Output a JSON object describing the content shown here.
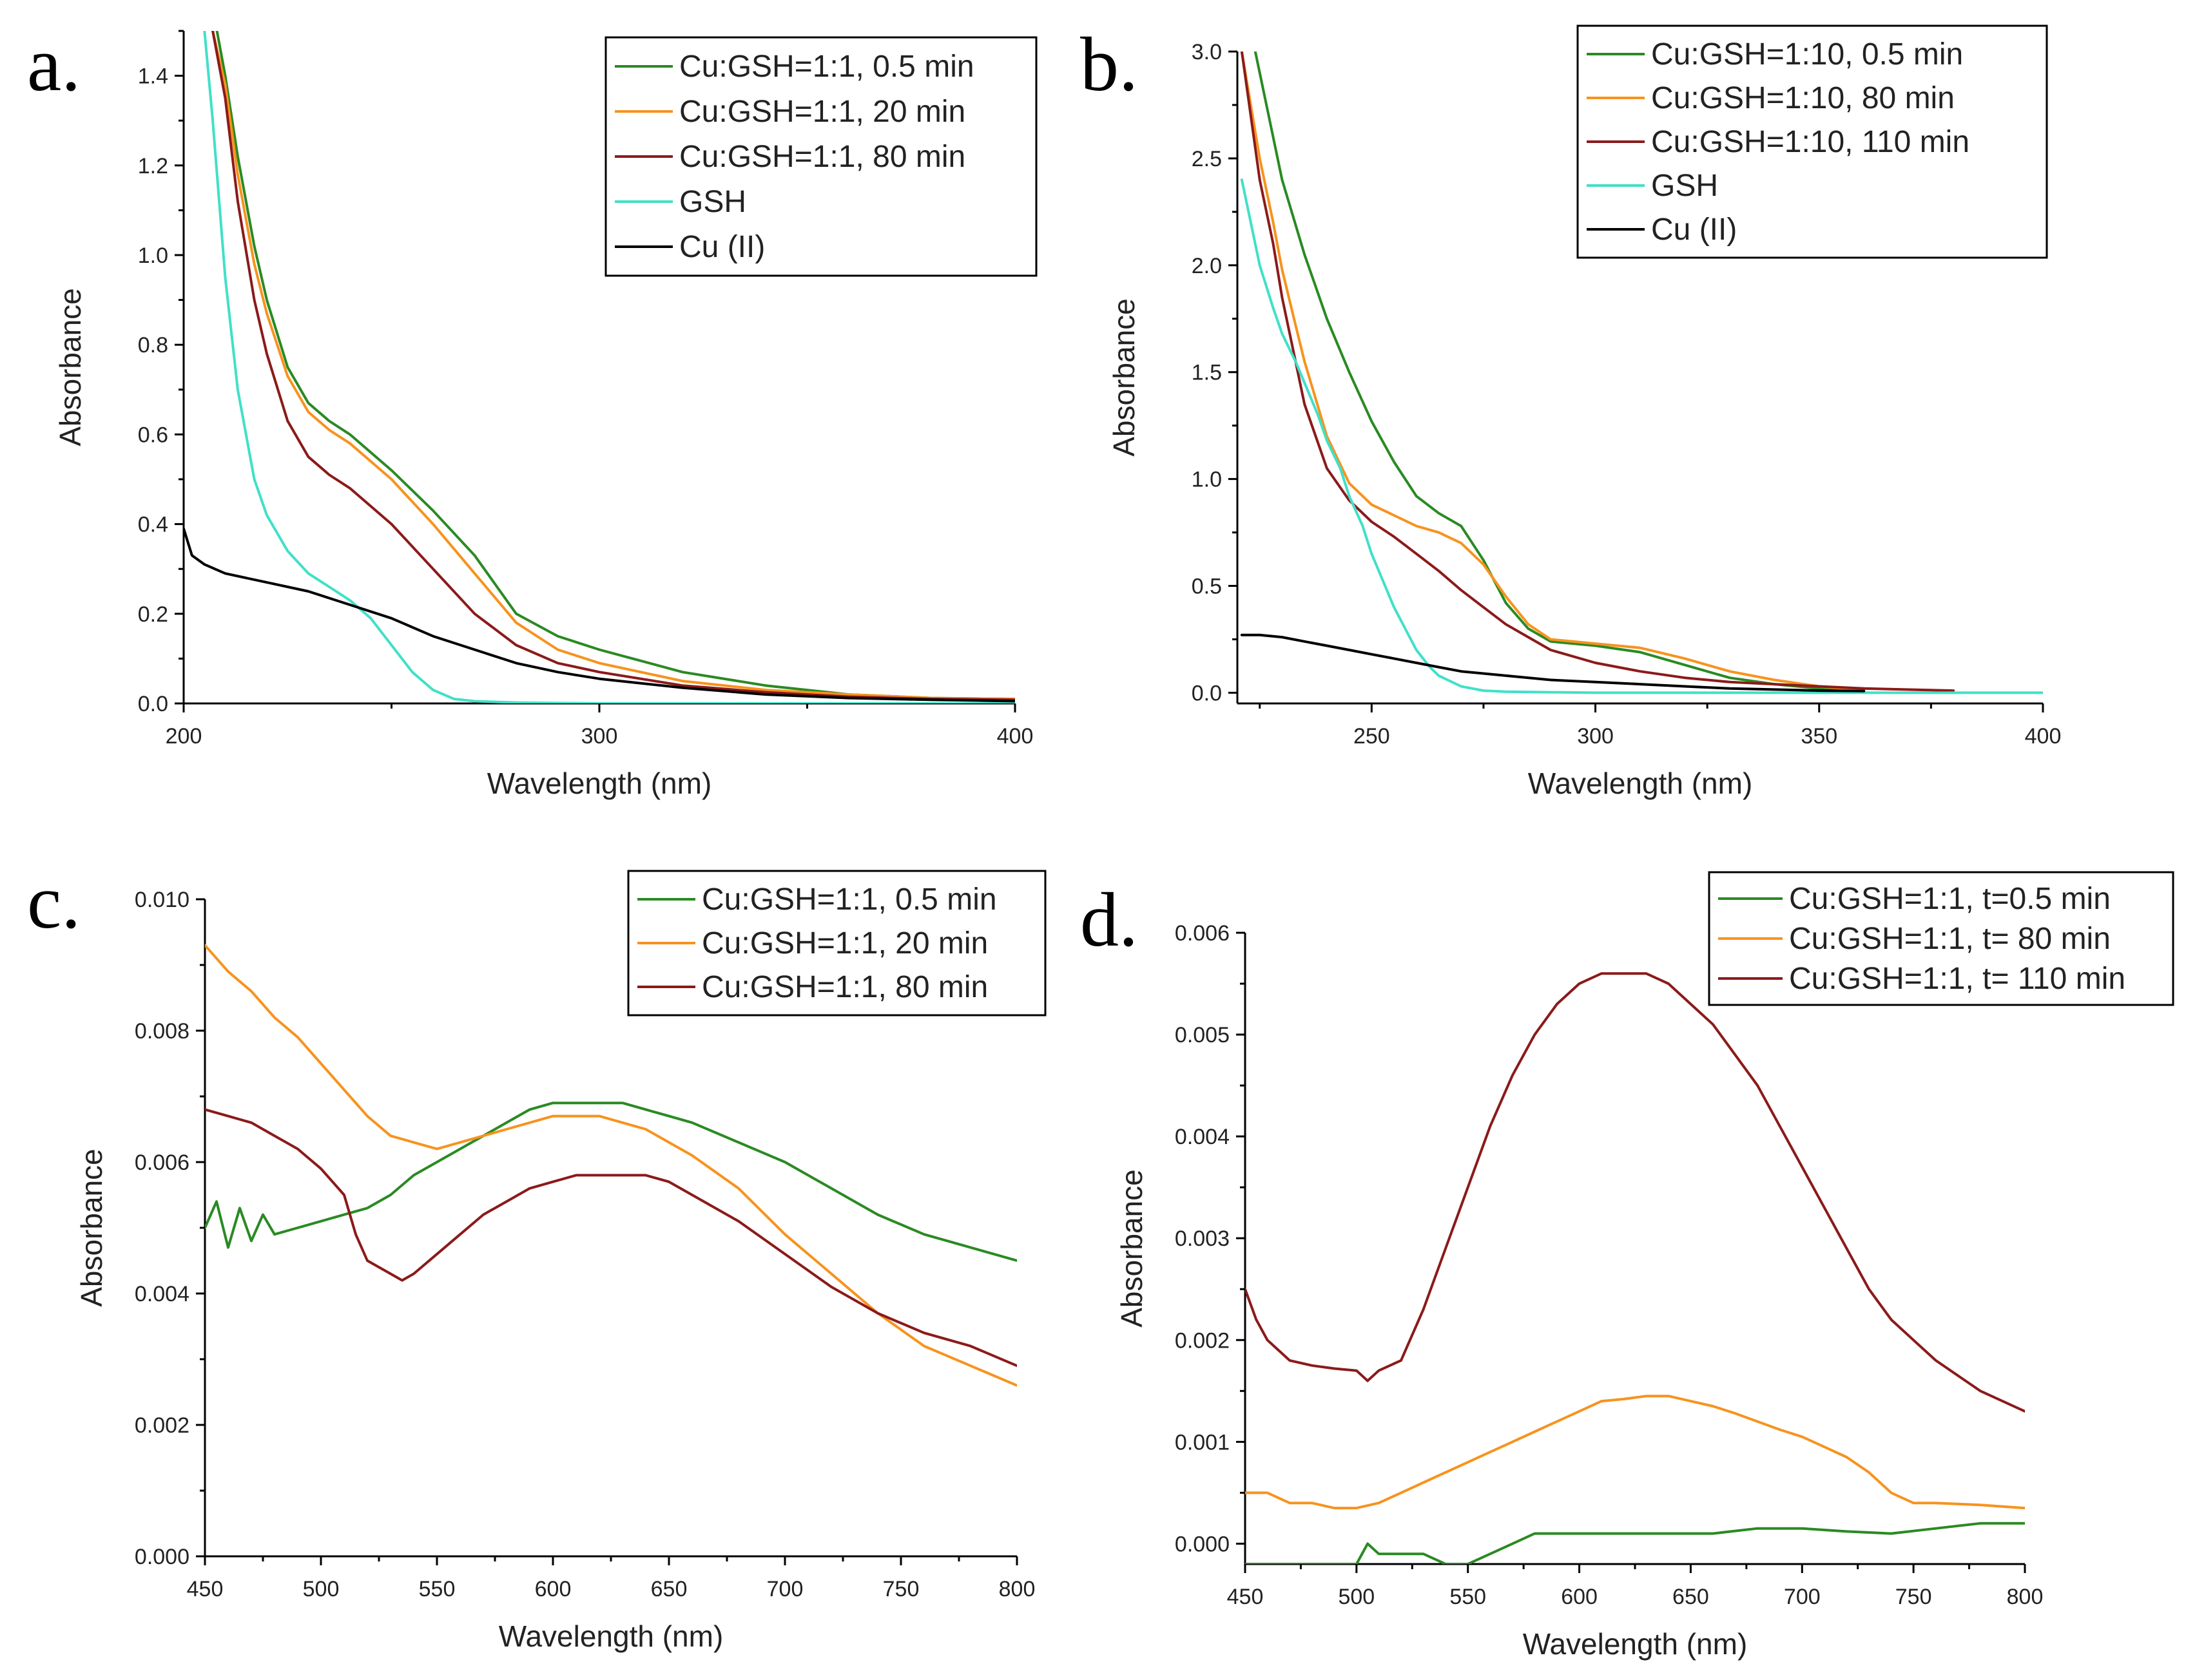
{
  "chart_data": [
    {
      "type": "line",
      "panel_label": "a.",
      "xlabel": "Wavelength (nm)",
      "ylabel": "Absorbance",
      "xlim": [
        200,
        400
      ],
      "ylim": [
        0.0,
        1.5
      ],
      "xticks": [
        200,
        300,
        400
      ],
      "xtick_labels": [
        "200",
        "300",
        "400"
      ],
      "yticks": [
        0.0,
        0.2,
        0.4,
        0.6,
        0.8,
        1.0,
        1.2,
        1.4
      ],
      "ytick_labels": [
        "0.0",
        "0.2",
        "0.4",
        "0.6",
        "0.8",
        "1.0",
        "1.2",
        "1.4"
      ],
      "legend": "top-right",
      "series": [
        {
          "name": "Cu:GSH=1:1, 0.5 min",
          "color": "#2a8a22",
          "x": [
            208,
            210,
            213,
            217,
            220,
            225,
            230,
            235,
            240,
            250,
            260,
            270,
            280,
            290,
            300,
            320,
            340,
            360,
            380,
            400
          ],
          "y": [
            1.5,
            1.4,
            1.22,
            1.02,
            0.9,
            0.75,
            0.67,
            0.63,
            0.6,
            0.52,
            0.43,
            0.33,
            0.2,
            0.15,
            0.12,
            0.07,
            0.04,
            0.02,
            0.012,
            0.01
          ]
        },
        {
          "name": "Cu:GSH=1:1, 20 min",
          "color": "#f7931e",
          "x": [
            207,
            210,
            213,
            217,
            220,
            225,
            230,
            235,
            240,
            250,
            260,
            270,
            280,
            290,
            300,
            320,
            340,
            360,
            380,
            400
          ],
          "y": [
            1.5,
            1.38,
            1.18,
            0.98,
            0.87,
            0.73,
            0.65,
            0.61,
            0.58,
            0.5,
            0.4,
            0.29,
            0.18,
            0.12,
            0.09,
            0.05,
            0.03,
            0.02,
            0.012,
            0.01
          ]
        },
        {
          "name": "Cu:GSH=1:1, 80 min",
          "color": "#8b1a1a",
          "x": [
            207,
            210,
            213,
            217,
            220,
            225,
            230,
            235,
            240,
            250,
            260,
            270,
            280,
            290,
            300,
            320,
            340,
            360,
            380,
            400
          ],
          "y": [
            1.5,
            1.35,
            1.12,
            0.9,
            0.78,
            0.63,
            0.55,
            0.51,
            0.48,
            0.4,
            0.3,
            0.2,
            0.13,
            0.09,
            0.07,
            0.04,
            0.025,
            0.015,
            0.01,
            0.008
          ]
        },
        {
          "name": "GSH",
          "color": "#40e0c8",
          "x": [
            205,
            207,
            210,
            213,
            217,
            220,
            225,
            230,
            235,
            240,
            245,
            250,
            255,
            260,
            265,
            270,
            280,
            300,
            400
          ],
          "y": [
            1.5,
            1.3,
            0.95,
            0.7,
            0.5,
            0.42,
            0.34,
            0.29,
            0.26,
            0.23,
            0.19,
            0.13,
            0.07,
            0.03,
            0.01,
            0.005,
            0.002,
            0.0,
            0.0
          ]
        },
        {
          "name": "Cu (II)",
          "color": "#000000",
          "x": [
            200,
            202,
            205,
            210,
            220,
            230,
            240,
            250,
            260,
            270,
            280,
            290,
            300,
            320,
            340,
            360,
            380,
            400
          ],
          "y": [
            0.39,
            0.33,
            0.31,
            0.29,
            0.27,
            0.25,
            0.22,
            0.19,
            0.15,
            0.12,
            0.09,
            0.07,
            0.055,
            0.035,
            0.02,
            0.012,
            0.008,
            0.005
          ]
        }
      ]
    },
    {
      "type": "line",
      "panel_label": "b.",
      "xlabel": "Wavelength (nm)",
      "ylabel": "Absorbance",
      "xlim": [
        220,
        400
      ],
      "ylim": [
        -0.05,
        3.0
      ],
      "xticks": [
        250,
        300,
        350,
        400
      ],
      "xtick_labels": [
        "250",
        "300",
        "350",
        "400"
      ],
      "yticks": [
        0.0,
        0.5,
        1.0,
        1.5,
        2.0,
        2.5,
        3.0
      ],
      "ytick_labels": [
        "0.0",
        "0.5",
        "1.0",
        "1.5",
        "2.0",
        "2.5",
        "3.0"
      ],
      "legend": "top-right",
      "series": [
        {
          "name": "Cu:GSH=1:10, 0.5 min",
          "color": "#2a8a22",
          "x": [
            224,
            227,
            230,
            235,
            240,
            245,
            250,
            255,
            260,
            265,
            270,
            275,
            280,
            285,
            290,
            300,
            310,
            320,
            330,
            340,
            350,
            360
          ],
          "y": [
            3.0,
            2.7,
            2.4,
            2.05,
            1.75,
            1.5,
            1.27,
            1.08,
            0.92,
            0.84,
            0.78,
            0.62,
            0.42,
            0.3,
            0.24,
            0.22,
            0.19,
            0.13,
            0.07,
            0.04,
            0.02,
            0.01
          ]
        },
        {
          "name": "Cu:GSH=1:10, 80 min",
          "color": "#f7931e",
          "x": [
            221,
            223,
            225,
            228,
            230,
            233,
            235,
            240,
            245,
            250,
            255,
            260,
            265,
            270,
            275,
            280,
            285,
            290,
            300,
            310,
            320,
            330,
            340,
            350,
            360
          ],
          "y": [
            3.0,
            2.75,
            2.5,
            2.2,
            1.98,
            1.72,
            1.55,
            1.2,
            0.98,
            0.88,
            0.83,
            0.78,
            0.75,
            0.7,
            0.6,
            0.45,
            0.32,
            0.25,
            0.23,
            0.21,
            0.16,
            0.1,
            0.06,
            0.03,
            0.01
          ]
        },
        {
          "name": "Cu:GSH=1:10, 110 min",
          "color": "#8b1a1a",
          "x": [
            221,
            223,
            225,
            228,
            230,
            233,
            235,
            240,
            245,
            250,
            255,
            260,
            265,
            270,
            275,
            280,
            285,
            290,
            300,
            310,
            320,
            330,
            340,
            350,
            360,
            380
          ],
          "y": [
            3.0,
            2.7,
            2.4,
            2.1,
            1.85,
            1.55,
            1.35,
            1.05,
            0.9,
            0.8,
            0.73,
            0.65,
            0.57,
            0.48,
            0.4,
            0.32,
            0.26,
            0.2,
            0.14,
            0.1,
            0.07,
            0.05,
            0.04,
            0.03,
            0.02,
            0.01
          ]
        },
        {
          "name": "GSH",
          "color": "#40e0c8",
          "x": [
            221,
            223,
            225,
            228,
            230,
            233,
            235,
            238,
            240,
            243,
            245,
            248,
            250,
            253,
            255,
            258,
            260,
            263,
            265,
            270,
            275,
            280,
            300,
            400
          ],
          "y": [
            2.4,
            2.2,
            2.0,
            1.8,
            1.68,
            1.55,
            1.45,
            1.3,
            1.18,
            1.05,
            0.92,
            0.78,
            0.65,
            0.5,
            0.4,
            0.28,
            0.2,
            0.12,
            0.08,
            0.03,
            0.01,
            0.005,
            0.0,
            0.0
          ]
        },
        {
          "name": "Cu (II)",
          "color": "#000000",
          "x": [
            221,
            225,
            230,
            235,
            240,
            245,
            250,
            255,
            260,
            265,
            270,
            280,
            290,
            300,
            310,
            320,
            330,
            340,
            350,
            360
          ],
          "y": [
            0.27,
            0.27,
            0.26,
            0.24,
            0.22,
            0.2,
            0.18,
            0.16,
            0.14,
            0.12,
            0.1,
            0.08,
            0.06,
            0.05,
            0.04,
            0.03,
            0.02,
            0.015,
            0.01,
            0.008
          ]
        }
      ]
    },
    {
      "type": "line",
      "panel_label": "c.",
      "xlabel": "Wavelength (nm)",
      "ylabel": "Absorbance",
      "xlim": [
        450,
        800
      ],
      "ylim": [
        0.0,
        0.01
      ],
      "xticks": [
        450,
        500,
        550,
        600,
        650,
        700,
        750,
        800
      ],
      "xtick_labels": [
        "450",
        "500",
        "550",
        "600",
        "650",
        "700",
        "750",
        "800"
      ],
      "yticks": [
        0.0,
        0.002,
        0.004,
        0.006,
        0.008,
        0.01
      ],
      "ytick_labels": [
        "0.000",
        "0.002",
        "0.004",
        "0.006",
        "0.008",
        "0.010"
      ],
      "legend": "top-right",
      "series": [
        {
          "name": "Cu:GSH=1:1, 0.5 min",
          "color": "#2a8a22",
          "x": [
            450,
            455,
            460,
            465,
            470,
            475,
            480,
            490,
            500,
            510,
            520,
            530,
            540,
            550,
            560,
            570,
            580,
            590,
            600,
            610,
            620,
            630,
            640,
            650,
            660,
            680,
            700,
            720,
            740,
            760,
            780,
            800
          ],
          "y": [
            0.005,
            0.0054,
            0.0047,
            0.0053,
            0.0048,
            0.0052,
            0.0049,
            0.005,
            0.0051,
            0.0052,
            0.0053,
            0.0055,
            0.0058,
            0.006,
            0.0062,
            0.0064,
            0.0066,
            0.0068,
            0.0069,
            0.0069,
            0.0069,
            0.0069,
            0.0068,
            0.0067,
            0.0066,
            0.0063,
            0.006,
            0.0056,
            0.0052,
            0.0049,
            0.0047,
            0.0045
          ]
        },
        {
          "name": "Cu:GSH=1:1, 20 min",
          "color": "#f7931e",
          "x": [
            450,
            460,
            470,
            480,
            490,
            500,
            510,
            520,
            530,
            540,
            550,
            560,
            570,
            580,
            590,
            600,
            610,
            620,
            630,
            640,
            650,
            660,
            680,
            700,
            720,
            740,
            760,
            780,
            800
          ],
          "y": [
            0.0093,
            0.0089,
            0.0086,
            0.0082,
            0.0079,
            0.0075,
            0.0071,
            0.0067,
            0.0064,
            0.0063,
            0.0062,
            0.0063,
            0.0064,
            0.0065,
            0.0066,
            0.0067,
            0.0067,
            0.0067,
            0.0066,
            0.0065,
            0.0063,
            0.0061,
            0.0056,
            0.0049,
            0.0043,
            0.0037,
            0.0032,
            0.0029,
            0.0026
          ]
        },
        {
          "name": "Cu:GSH=1:1, 80 min",
          "color": "#8b1a1a",
          "x": [
            450,
            460,
            470,
            480,
            490,
            500,
            510,
            515,
            520,
            530,
            535,
            540,
            550,
            560,
            570,
            580,
            590,
            600,
            610,
            620,
            630,
            640,
            650,
            660,
            680,
            700,
            720,
            740,
            760,
            780,
            800
          ],
          "y": [
            0.0068,
            0.0067,
            0.0066,
            0.0064,
            0.0062,
            0.0059,
            0.0055,
            0.0049,
            0.0045,
            0.0043,
            0.0042,
            0.0043,
            0.0046,
            0.0049,
            0.0052,
            0.0054,
            0.0056,
            0.0057,
            0.0058,
            0.0058,
            0.0058,
            0.0058,
            0.0057,
            0.0055,
            0.0051,
            0.0046,
            0.0041,
            0.0037,
            0.0034,
            0.0032,
            0.0029
          ]
        }
      ]
    },
    {
      "type": "line",
      "panel_label": "d.",
      "xlabel": "Wavelength (nm)",
      "ylabel": "Absorbance",
      "xlim": [
        450,
        800
      ],
      "ylim": [
        -0.0002,
        0.006
      ],
      "xticks": [
        450,
        500,
        550,
        600,
        650,
        700,
        750,
        800
      ],
      "xtick_labels": [
        "450",
        "500",
        "550",
        "600",
        "650",
        "700",
        "750",
        "800"
      ],
      "yticks": [
        0.0,
        0.001,
        0.002,
        0.003,
        0.004,
        0.005,
        0.006
      ],
      "ytick_labels": [
        "0.000",
        "0.001",
        "0.002",
        "0.003",
        "0.004",
        "0.005",
        "0.006"
      ],
      "legend": "top-right",
      "series": [
        {
          "name": "Cu:GSH=1:1, t=0.5 min",
          "color": "#2a8a22",
          "x": [
            450,
            460,
            470,
            480,
            490,
            500,
            505,
            510,
            520,
            530,
            540,
            550,
            560,
            570,
            580,
            590,
            600,
            620,
            640,
            660,
            680,
            700,
            720,
            740,
            760,
            780,
            800
          ],
          "y": [
            -0.0002,
            -0.0002,
            -0.0002,
            -0.0002,
            -0.0002,
            -0.0002,
            0.0,
            -0.0001,
            -0.0001,
            -0.0001,
            -0.0002,
            -0.0002,
            -0.0001,
            0.0,
            0.0001,
            0.0001,
            0.0001,
            0.0001,
            0.0001,
            0.0001,
            0.00015,
            0.00015,
            0.00012,
            0.0001,
            0.00015,
            0.0002,
            0.0002
          ]
        },
        {
          "name": "Cu:GSH=1:1, t= 80 min",
          "color": "#f7931e",
          "x": [
            450,
            460,
            470,
            480,
            490,
            500,
            510,
            520,
            530,
            540,
            550,
            560,
            570,
            580,
            590,
            600,
            610,
            620,
            630,
            640,
            650,
            660,
            670,
            680,
            690,
            700,
            710,
            720,
            730,
            740,
            750,
            760,
            780,
            800
          ],
          "y": [
            0.0005,
            0.0005,
            0.0004,
            0.0004,
            0.00035,
            0.00035,
            0.0004,
            0.0005,
            0.0006,
            0.0007,
            0.0008,
            0.0009,
            0.001,
            0.0011,
            0.0012,
            0.0013,
            0.0014,
            0.00142,
            0.00145,
            0.00145,
            0.0014,
            0.00135,
            0.00128,
            0.0012,
            0.00112,
            0.00105,
            0.00095,
            0.00085,
            0.0007,
            0.0005,
            0.0004,
            0.0004,
            0.00038,
            0.00035
          ]
        },
        {
          "name": "Cu:GSH=1:1, t= 110 min",
          "color": "#8b1a1a",
          "x": [
            450,
            455,
            460,
            465,
            470,
            480,
            490,
            500,
            505,
            510,
            520,
            530,
            540,
            550,
            560,
            570,
            580,
            590,
            600,
            610,
            620,
            630,
            640,
            650,
            660,
            670,
            680,
            690,
            700,
            710,
            720,
            730,
            740,
            750,
            760,
            780,
            800
          ],
          "y": [
            0.0025,
            0.0022,
            0.002,
            0.0019,
            0.0018,
            0.00175,
            0.00172,
            0.0017,
            0.0016,
            0.0017,
            0.0018,
            0.0023,
            0.0029,
            0.0035,
            0.0041,
            0.0046,
            0.005,
            0.0053,
            0.0055,
            0.0056,
            0.0056,
            0.0056,
            0.0055,
            0.0053,
            0.0051,
            0.0048,
            0.0045,
            0.0041,
            0.0037,
            0.0033,
            0.0029,
            0.0025,
            0.0022,
            0.002,
            0.0018,
            0.0015,
            0.0013
          ]
        }
      ]
    }
  ]
}
